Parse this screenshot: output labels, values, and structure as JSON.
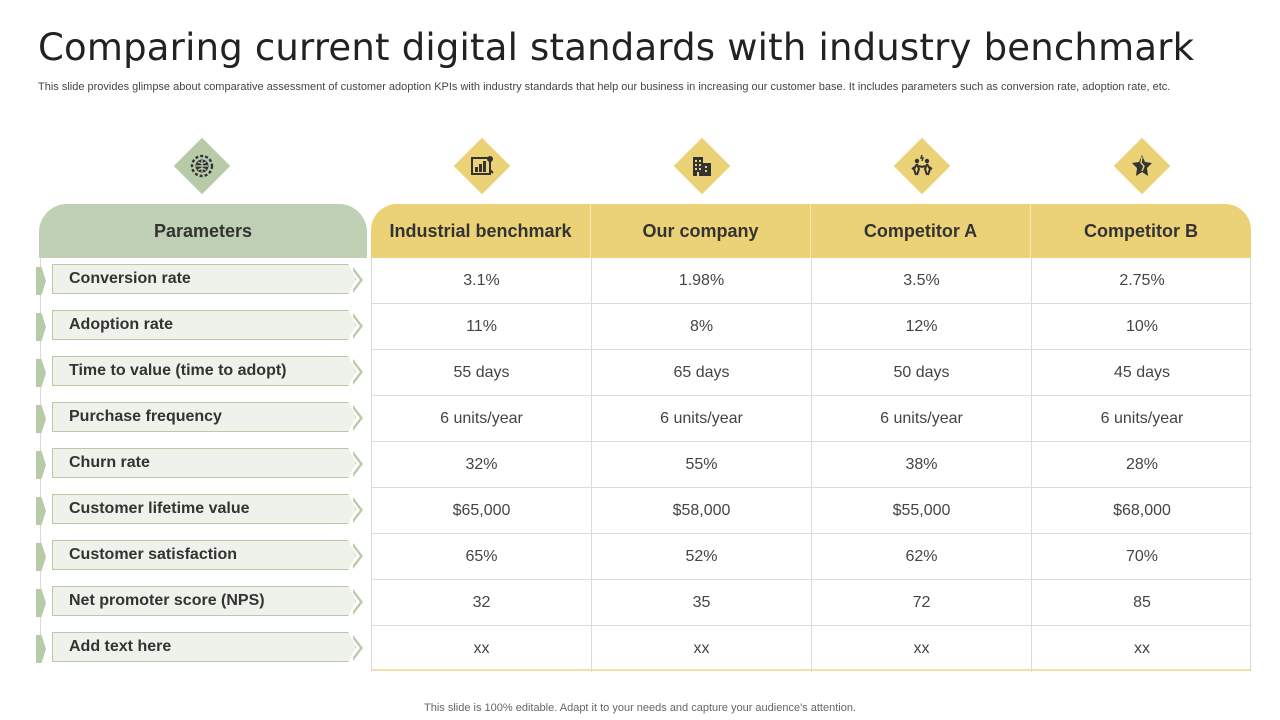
{
  "title": "Comparing current digital standards with industry benchmark",
  "subtitle": "This slide provides glimpse about comparative assessment of customer adoption KPIs with industry standards that help our business in increasing our customer base. It includes parameters such as conversion rate, adoption rate, etc.",
  "icons": [
    {
      "name": "gear-globe-icon",
      "color": "#b8cba9"
    },
    {
      "name": "chart-board-icon",
      "color": "#ecd277"
    },
    {
      "name": "building-icon",
      "color": "#ecd277"
    },
    {
      "name": "people-competition-icon",
      "color": "#ecd277"
    },
    {
      "name": "broken-star-icon",
      "color": "#ecd277"
    }
  ],
  "table": {
    "parameters_header": "Parameters",
    "columns": [
      "Industrial benchmark",
      "Our company",
      "Competitor A",
      "Competitor B"
    ],
    "rows": [
      {
        "parameter": "Conversion rate",
        "values": [
          "3.1%",
          "1.98%",
          "3.5%",
          "2.75%"
        ]
      },
      {
        "parameter": "Adoption rate",
        "values": [
          "11%",
          "8%",
          "12%",
          "10%"
        ]
      },
      {
        "parameter": "Time to value (time to adopt)",
        "values": [
          "55 days",
          "65 days",
          "50 days",
          "45 days"
        ]
      },
      {
        "parameter": "Purchase frequency",
        "values": [
          "6 units/year",
          "6 units/year",
          "6 units/year",
          "6 units/year"
        ]
      },
      {
        "parameter": "Churn rate",
        "values": [
          "32%",
          "55%",
          "38%",
          "28%"
        ]
      },
      {
        "parameter": "Customer lifetime value",
        "values": [
          "$65,000",
          "$58,000",
          "$55,000",
          "$68,000"
        ]
      },
      {
        "parameter": "Customer satisfaction",
        "values": [
          "65%",
          "52%",
          "62%",
          "70%"
        ]
      },
      {
        "parameter": "Net promoter score (NPS)",
        "values": [
          "32",
          "35",
          "72",
          "85"
        ]
      },
      {
        "parameter": "Add text here",
        "values": [
          "xx",
          "xx",
          "xx",
          "xx"
        ]
      }
    ]
  },
  "footer": "This slide is 100% editable. Adapt it to your needs and capture your audience's attention.",
  "colors": {
    "green": "#c0d0b4",
    "yellow": "#ecd277"
  }
}
